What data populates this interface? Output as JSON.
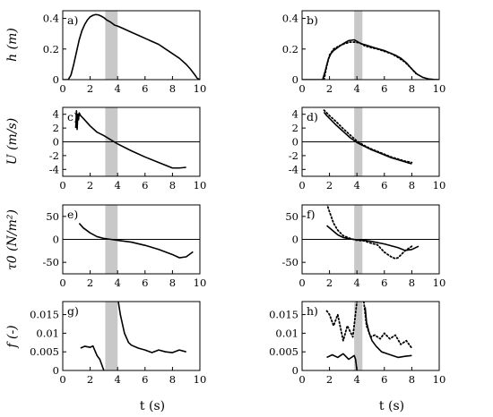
{
  "chart_data": [
    {
      "panel_label": "a)",
      "type": "line",
      "xlim": [
        0,
        10
      ],
      "ylim": [
        0,
        0.45
      ],
      "xticks": [
        "0",
        "2",
        "4",
        "6",
        "8",
        "10"
      ],
      "yticks": [
        "0",
        "0.2",
        "0.4"
      ],
      "ylabel": "h (m)",
      "shade": [
        3.1,
        4.0
      ],
      "series": [
        {
          "style": "solid",
          "x": [
            0,
            0.4,
            0.6,
            0.8,
            1,
            1.2,
            1.4,
            1.6,
            1.8,
            2,
            2.2,
            2.4,
            2.6,
            2.8,
            3,
            3.2,
            3.5,
            3.8,
            4,
            4.5,
            5,
            5.5,
            6,
            6.5,
            7,
            7.5,
            8,
            8.5,
            9,
            9.3,
            9.6,
            9.8,
            10
          ],
          "y": [
            0,
            0,
            0.03,
            0.1,
            0.18,
            0.26,
            0.32,
            0.36,
            0.39,
            0.41,
            0.42,
            0.425,
            0.423,
            0.415,
            0.405,
            0.39,
            0.375,
            0.355,
            0.35,
            0.33,
            0.31,
            0.29,
            0.27,
            0.25,
            0.23,
            0.2,
            0.17,
            0.14,
            0.1,
            0.07,
            0.035,
            0.01,
            0
          ]
        }
      ]
    },
    {
      "panel_label": "b)",
      "type": "line",
      "xlim": [
        0,
        10
      ],
      "ylim": [
        0,
        0.45
      ],
      "xticks": [
        "0",
        "2",
        "4",
        "6",
        "8",
        "10"
      ],
      "yticks": [
        "0",
        "0.2",
        "0.4"
      ],
      "ylabel": "",
      "shade": [
        3.8,
        4.4
      ],
      "series": [
        {
          "style": "solid",
          "x": [
            0,
            1.5,
            1.7,
            1.9,
            2.1,
            2.3,
            2.6,
            3,
            3.4,
            3.8,
            4,
            4.3,
            4.7,
            5.2,
            5.6,
            6,
            6.4,
            6.8,
            7.2,
            7.6,
            8,
            8.4,
            8.8,
            9.2,
            9.6,
            10
          ],
          "y": [
            0,
            0,
            0.06,
            0.13,
            0.17,
            0.19,
            0.21,
            0.235,
            0.255,
            0.26,
            0.25,
            0.235,
            0.225,
            0.21,
            0.2,
            0.19,
            0.175,
            0.16,
            0.14,
            0.11,
            0.07,
            0.035,
            0.015,
            0.005,
            0.001,
            0
          ]
        },
        {
          "style": "dotted",
          "x": [
            1.6,
            1.8,
            2,
            2.3,
            2.7,
            3.1,
            3.5,
            3.9,
            4.2,
            4.6,
            5,
            5.5,
            6,
            6.5,
            7,
            7.5,
            8,
            8.3
          ],
          "y": [
            0,
            0.09,
            0.16,
            0.2,
            0.22,
            0.235,
            0.245,
            0.245,
            0.24,
            0.22,
            0.21,
            0.2,
            0.185,
            0.17,
            0.145,
            0.115,
            0.07,
            0.04
          ]
        }
      ]
    },
    {
      "panel_label": "c)",
      "type": "line",
      "xlim": [
        0,
        10
      ],
      "ylim": [
        -5,
        5
      ],
      "xticks": [
        "0",
        "2",
        "4",
        "6",
        "8",
        "10"
      ],
      "yticks": [
        "-4",
        "-2",
        "0",
        "2",
        "4"
      ],
      "ylabel": "U (m/s)",
      "shade": [
        3.1,
        4.0
      ],
      "zero_line": true,
      "series": [
        {
          "style": "solid",
          "x": [
            0.95,
            1,
            1.05,
            1.1,
            1.15,
            1.2,
            1.3,
            1.5,
            2,
            2.5,
            3,
            3.5,
            4,
            5,
            6,
            7,
            8,
            8.5,
            9
          ],
          "y": [
            2,
            4.5,
            1.8,
            4,
            3.2,
            4.2,
            3.8,
            3.4,
            2.3,
            1.4,
            0.9,
            0.3,
            -0.3,
            -1.3,
            -2.2,
            -3,
            -3.8,
            -3.8,
            -3.7
          ]
        }
      ]
    },
    {
      "panel_label": "d)",
      "type": "line",
      "xlim": [
        0,
        10
      ],
      "ylim": [
        -5,
        5
      ],
      "xticks": [
        "0",
        "2",
        "4",
        "6",
        "8",
        "10"
      ],
      "yticks": [
        "-4",
        "-2",
        "0",
        "2",
        "4"
      ],
      "ylabel": "",
      "shade": [
        3.8,
        4.4
      ],
      "zero_line": true,
      "series": [
        {
          "style": "solid",
          "x": [
            1.6,
            1.8,
            2,
            2.5,
            3,
            3.5,
            4,
            4.5,
            5,
            5.5,
            6,
            6.5,
            7,
            7.5,
            8
          ],
          "y": [
            4.3,
            3.8,
            3.4,
            2.4,
            1.5,
            0.6,
            -0.1,
            -0.6,
            -1.1,
            -1.5,
            -1.9,
            -2.3,
            -2.6,
            -2.9,
            -3.2
          ]
        },
        {
          "style": "dotted",
          "x": [
            1.6,
            2,
            2.5,
            3,
            3.5,
            4,
            4.5,
            5,
            5.5,
            6,
            6.5,
            7,
            7.5,
            8
          ],
          "y": [
            4.6,
            3.8,
            2.9,
            1.9,
            1,
            0.1,
            -0.5,
            -1,
            -1.4,
            -1.8,
            -2.2,
            -2.5,
            -2.8,
            -3
          ]
        }
      ]
    },
    {
      "panel_label": "e)",
      "type": "line",
      "xlim": [
        0,
        10
      ],
      "ylim": [
        -75,
        75
      ],
      "xticks": [
        "0",
        "2",
        "4",
        "6",
        "8",
        "10"
      ],
      "yticks": [
        "-50",
        "0",
        "50"
      ],
      "ylabel": "τ0 (N/m²)",
      "shade": [
        3.1,
        4.0
      ],
      "zero_line": true,
      "series": [
        {
          "style": "solid",
          "x": [
            1.2,
            1.5,
            2,
            2.5,
            3,
            3.5,
            4,
            5,
            6,
            7,
            8,
            8.5,
            9,
            9.5
          ],
          "y": [
            35,
            25,
            14,
            6,
            2,
            0,
            -2,
            -6,
            -13,
            -22,
            -33,
            -40,
            -38,
            -27
          ]
        }
      ]
    },
    {
      "panel_label": "f)",
      "type": "line",
      "xlim": [
        0,
        10
      ],
      "ylim": [
        -75,
        75
      ],
      "xticks": [
        "0",
        "2",
        "4",
        "6",
        "8",
        "10"
      ],
      "yticks": [
        "-50",
        "0",
        "50"
      ],
      "ylabel": "",
      "shade": [
        3.8,
        4.4
      ],
      "zero_line": true,
      "series": [
        {
          "style": "solid",
          "x": [
            1.8,
            2.2,
            2.6,
            3,
            3.5,
            4,
            4.5,
            5,
            6,
            7,
            7.5,
            8,
            8.5
          ],
          "y": [
            30,
            20,
            10,
            4,
            1,
            -1,
            -2,
            -4,
            -10,
            -18,
            -24,
            -22,
            -15
          ]
        },
        {
          "style": "dotted",
          "x": [
            1.8,
            2,
            2.3,
            2.6,
            3,
            3.5,
            4,
            4.5,
            5,
            5.5,
            6,
            6.5,
            6.8,
            7,
            7.5,
            8
          ],
          "y": [
            78,
            60,
            35,
            20,
            8,
            2,
            -2,
            -3,
            -8,
            -12,
            -28,
            -38,
            -42,
            -40,
            -25,
            -15
          ]
        }
      ]
    },
    {
      "panel_label": "g)",
      "type": "line",
      "xlim": [
        0,
        10
      ],
      "ylim": [
        0,
        0.0185
      ],
      "xticks": [
        "0",
        "2",
        "4",
        "6",
        "8",
        "10"
      ],
      "yticks": [
        "0",
        "0.005",
        "0.01",
        "0.015"
      ],
      "ylabel": "f (-)",
      "shade": [
        3.1,
        4.0
      ],
      "series": [
        {
          "style": "solid",
          "x": [
            1.3,
            1.6,
            2,
            2.2,
            2.5,
            2.7,
            2.9,
            3
          ],
          "y": [
            0.006,
            0.0065,
            0.0062,
            0.0066,
            0.004,
            0.003,
            0.001,
            0
          ]
        },
        {
          "style": "solid",
          "x": [
            4.05,
            4.2,
            4.5,
            4.8,
            5,
            5.5,
            6,
            6.5,
            7,
            7.5,
            8,
            8.5,
            9
          ],
          "y": [
            0.0185,
            0.015,
            0.01,
            0.0075,
            0.0068,
            0.006,
            0.0055,
            0.0048,
            0.0055,
            0.005,
            0.0048,
            0.0055,
            0.005
          ]
        }
      ]
    },
    {
      "panel_label": "h)",
      "type": "line",
      "xlim": [
        0,
        10
      ],
      "ylim": [
        0,
        0.0185
      ],
      "xticks": [
        "0",
        "2",
        "4",
        "6",
        "8",
        "10"
      ],
      "yticks": [
        "0",
        "0.005",
        "0.01",
        "0.015"
      ],
      "ylabel": "",
      "shade": [
        3.8,
        4.4
      ],
      "series": [
        {
          "style": "solid",
          "x": [
            1.8,
            2.2,
            2.6,
            3,
            3.4,
            3.8,
            3.9,
            4
          ],
          "y": [
            0.0035,
            0.0042,
            0.0035,
            0.0045,
            0.003,
            0.004,
            0.003,
            0
          ]
        },
        {
          "style": "solid",
          "x": [
            4.6,
            4.7,
            4.9,
            5.1,
            5.4,
            5.8,
            6.2,
            6.6,
            7,
            7.5,
            8
          ],
          "y": [
            0.017,
            0.013,
            0.01,
            0.008,
            0.0065,
            0.005,
            0.0045,
            0.004,
            0.0035,
            0.0038,
            0.004
          ]
        },
        {
          "style": "dotted",
          "x": [
            1.8,
            2,
            2.3,
            2.6,
            3,
            3.3,
            3.7,
            4
          ],
          "y": [
            0.016,
            0.015,
            0.012,
            0.015,
            0.008,
            0.012,
            0.009,
            0.0185
          ]
        },
        {
          "style": "dotted",
          "x": [
            4.5,
            4.7,
            5,
            5.3,
            5.7,
            6,
            6.4,
            6.8,
            7.2,
            7.6,
            8
          ],
          "y": [
            0.0185,
            0.012,
            0.009,
            0.0095,
            0.0085,
            0.01,
            0.0085,
            0.0095,
            0.007,
            0.008,
            0.006
          ]
        }
      ]
    }
  ],
  "xlabel": "t (s)"
}
